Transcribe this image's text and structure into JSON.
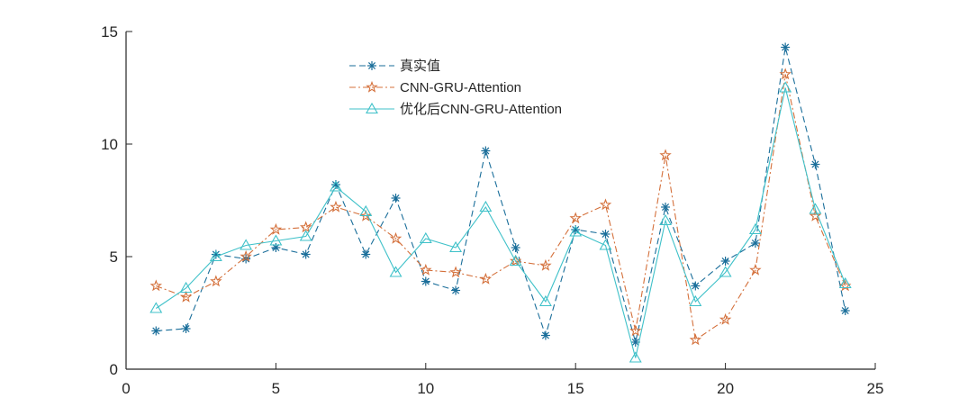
{
  "chart_data": {
    "type": "line",
    "title": "",
    "xlabel": "",
    "ylabel": "",
    "xlim": [
      0,
      25
    ],
    "ylim": [
      0,
      15
    ],
    "xticks": [
      0,
      5,
      10,
      15,
      20,
      25
    ],
    "yticks": [
      0,
      5,
      10,
      15
    ],
    "grid": false,
    "legend_position": "top-center",
    "x": [
      1,
      2,
      3,
      4,
      5,
      6,
      7,
      8,
      9,
      10,
      11,
      12,
      13,
      14,
      15,
      16,
      17,
      18,
      19,
      20,
      21,
      22,
      23,
      24
    ],
    "series": [
      {
        "name": "真实值",
        "color": "#1a6e9a",
        "line_style": "dashed",
        "marker": "asterisk",
        "values": [
          1.7,
          1.8,
          5.1,
          4.9,
          5.4,
          5.1,
          8.2,
          5.1,
          7.6,
          3.9,
          3.5,
          9.7,
          5.4,
          1.5,
          6.2,
          6.0,
          1.2,
          7.2,
          3.7,
          4.8,
          5.6,
          14.3,
          9.1,
          2.6
        ]
      },
      {
        "name": "CNN-GRU-Attention",
        "color": "#d4703b",
        "line_style": "dashdot",
        "marker": "star",
        "values": [
          3.7,
          3.2,
          3.9,
          5.0,
          6.2,
          6.3,
          7.2,
          6.8,
          5.8,
          4.4,
          4.3,
          4.0,
          4.8,
          4.6,
          6.7,
          7.3,
          1.7,
          9.5,
          1.3,
          2.2,
          4.4,
          13.1,
          6.8,
          3.7
        ]
      },
      {
        "name": "优化后CNN-GRU-Attention",
        "color": "#3fc1c9",
        "line_style": "solid",
        "marker": "triangle",
        "values": [
          2.7,
          3.6,
          5.0,
          5.5,
          5.7,
          5.9,
          8.1,
          7.0,
          4.3,
          5.8,
          5.4,
          7.2,
          4.8,
          3.0,
          6.1,
          5.5,
          0.5,
          6.6,
          3.0,
          4.3,
          6.2,
          12.5,
          7.1,
          3.8
        ]
      }
    ]
  }
}
